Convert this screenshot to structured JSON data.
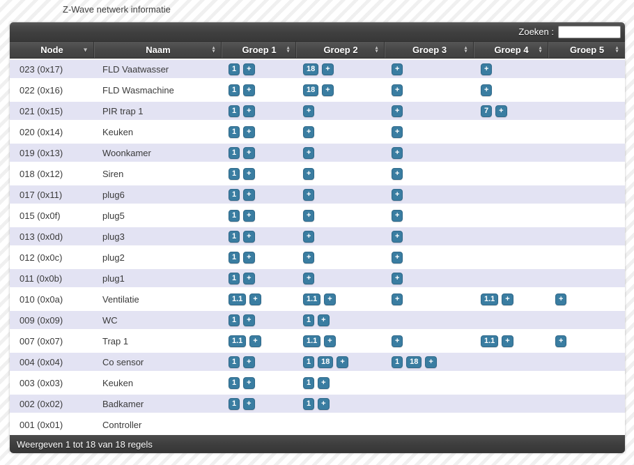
{
  "page": {
    "title": "Z-Wave netwerk informatie"
  },
  "toolbar": {
    "search_label": "Zoeken :",
    "search_value": "",
    "search_placeholder": ""
  },
  "icons": {
    "sort_ascending": "▲",
    "sort_descending": "▼"
  },
  "colors": {
    "accent": "#3a7da1",
    "row_stripe": "#e3e3f3",
    "bar_dark": "#3d3d3d"
  },
  "table": {
    "columns": [
      {
        "label": "Node",
        "sort": "desc"
      },
      {
        "label": "Naam",
        "sort": "both"
      },
      {
        "label": "Groep 1",
        "sort": "both"
      },
      {
        "label": "Groep 2",
        "sort": "both"
      },
      {
        "label": "Groep 3",
        "sort": "both"
      },
      {
        "label": "Groep 4",
        "sort": "both"
      },
      {
        "label": "Groep 5",
        "sort": "both"
      }
    ],
    "rows": [
      {
        "node": "023 (0x17)",
        "name": "FLD Vaatwasser",
        "groups": [
          [
            "1",
            "+"
          ],
          [
            "18",
            "+"
          ],
          [
            "+"
          ],
          [
            "+"
          ],
          []
        ]
      },
      {
        "node": "022 (0x16)",
        "name": "FLD Wasmachine",
        "groups": [
          [
            "1",
            "+"
          ],
          [
            "18",
            "+"
          ],
          [
            "+"
          ],
          [
            "+"
          ],
          []
        ]
      },
      {
        "node": "021 (0x15)",
        "name": "PIR trap 1",
        "groups": [
          [
            "1",
            "+"
          ],
          [
            "+"
          ],
          [
            "+"
          ],
          [
            "7",
            "+"
          ],
          []
        ]
      },
      {
        "node": "020 (0x14)",
        "name": "Keuken",
        "groups": [
          [
            "1",
            "+"
          ],
          [
            "+"
          ],
          [
            "+"
          ],
          [],
          []
        ]
      },
      {
        "node": "019 (0x13)",
        "name": "Woonkamer",
        "groups": [
          [
            "1",
            "+"
          ],
          [
            "+"
          ],
          [
            "+"
          ],
          [],
          []
        ]
      },
      {
        "node": "018 (0x12)",
        "name": "Siren",
        "groups": [
          [
            "1",
            "+"
          ],
          [
            "+"
          ],
          [
            "+"
          ],
          [],
          []
        ]
      },
      {
        "node": "017 (0x11)",
        "name": "plug6",
        "groups": [
          [
            "1",
            "+"
          ],
          [
            "+"
          ],
          [
            "+"
          ],
          [],
          []
        ]
      },
      {
        "node": "015 (0x0f)",
        "name": "plug5",
        "groups": [
          [
            "1",
            "+"
          ],
          [
            "+"
          ],
          [
            "+"
          ],
          [],
          []
        ]
      },
      {
        "node": "013 (0x0d)",
        "name": "plug3",
        "groups": [
          [
            "1",
            "+"
          ],
          [
            "+"
          ],
          [
            "+"
          ],
          [],
          []
        ]
      },
      {
        "node": "012 (0x0c)",
        "name": "plug2",
        "groups": [
          [
            "1",
            "+"
          ],
          [
            "+"
          ],
          [
            "+"
          ],
          [],
          []
        ]
      },
      {
        "node": "011 (0x0b)",
        "name": "plug1",
        "groups": [
          [
            "1",
            "+"
          ],
          [
            "+"
          ],
          [
            "+"
          ],
          [],
          []
        ]
      },
      {
        "node": "010 (0x0a)",
        "name": "Ventilatie",
        "groups": [
          [
            "1.1",
            "+"
          ],
          [
            "1.1",
            "+"
          ],
          [
            "+"
          ],
          [
            "1.1",
            "+"
          ],
          [
            "+"
          ]
        ]
      },
      {
        "node": "009 (0x09)",
        "name": "WC",
        "groups": [
          [
            "1",
            "+"
          ],
          [
            "1",
            "+"
          ],
          [],
          [],
          []
        ]
      },
      {
        "node": "007 (0x07)",
        "name": "Trap 1",
        "groups": [
          [
            "1.1",
            "+"
          ],
          [
            "1.1",
            "+"
          ],
          [
            "+"
          ],
          [
            "1.1",
            "+"
          ],
          [
            "+"
          ]
        ]
      },
      {
        "node": "004 (0x04)",
        "name": "Co sensor",
        "groups": [
          [
            "1",
            "+"
          ],
          [
            "1",
            "18",
            "+"
          ],
          [
            "1",
            "18",
            "+"
          ],
          [],
          []
        ]
      },
      {
        "node": "003 (0x03)",
        "name": "Keuken",
        "groups": [
          [
            "1",
            "+"
          ],
          [
            "1",
            "+"
          ],
          [],
          [],
          []
        ]
      },
      {
        "node": "002 (0x02)",
        "name": "Badkamer",
        "groups": [
          [
            "1",
            "+"
          ],
          [
            "1",
            "+"
          ],
          [],
          [],
          []
        ]
      },
      {
        "node": "001 (0x01)",
        "name": "Controller",
        "groups": [
          [],
          [],
          [],
          [],
          []
        ]
      }
    ]
  },
  "footer": {
    "status": "Weergeven 1 tot 18 van 18 regels"
  }
}
